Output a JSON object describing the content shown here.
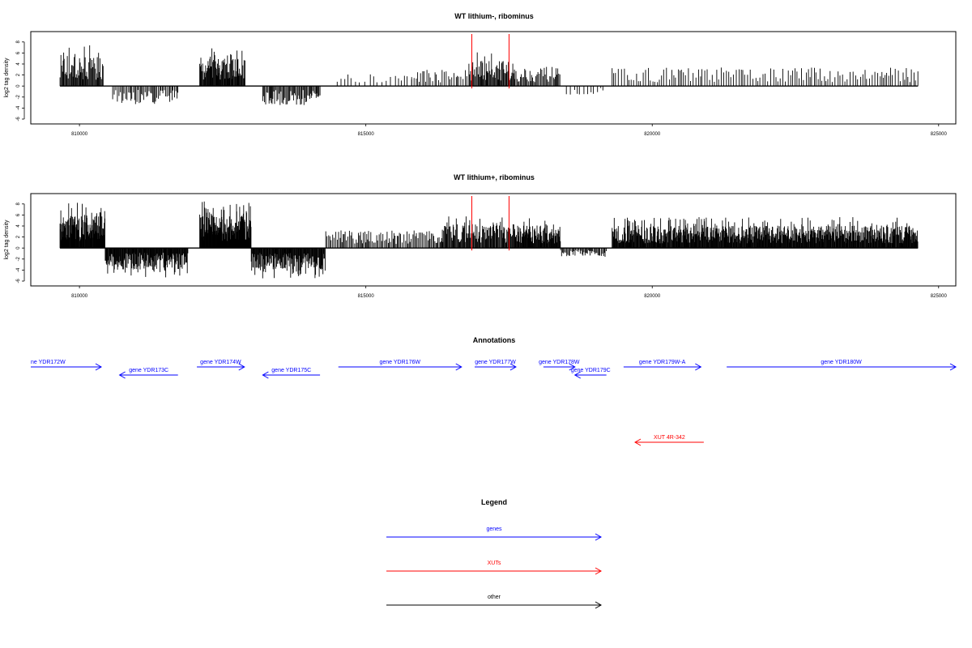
{
  "colors": {
    "gene": "#0000ff",
    "xut": "#ff0000",
    "other": "#000000",
    "marker": "#ff0000",
    "bars": "#000000"
  },
  "chart_data": [
    {
      "type": "bar",
      "title": "WT lithium-, ribominus",
      "ylabel": "log2 tag density",
      "xlim": [
        809150,
        825300
      ],
      "ylim": [
        -6,
        9
      ],
      "yticks": [
        -6,
        -4,
        -2,
        0,
        2,
        4,
        6,
        8
      ],
      "yticklabels": [
        "-6",
        "-4",
        "-2",
        "0",
        "2",
        "4",
        "6",
        "8"
      ],
      "xticks": [
        810000,
        815000,
        820000,
        825000
      ],
      "xticklabels": [
        "810000",
        "815000",
        "820000",
        "825000"
      ],
      "baseline_range": [
        809660,
        824640
      ],
      "marker_lines": [
        816850,
        817500
      ],
      "density_profile": [
        {
          "start": 809660,
          "end": 810420,
          "value": 4.6,
          "spacing": 12
        },
        {
          "start": 810580,
          "end": 811720,
          "value": -2.8,
          "spacing": 22
        },
        {
          "start": 812100,
          "end": 812900,
          "value": 4.2,
          "spacing": 10
        },
        {
          "start": 813200,
          "end": 814200,
          "value": -2.9,
          "spacing": 16
        },
        {
          "start": 814500,
          "end": 815800,
          "value": 1.8,
          "spacing": 75
        },
        {
          "start": 815800,
          "end": 816800,
          "value": 2.6,
          "spacing": 32
        },
        {
          "start": 816800,
          "end": 817600,
          "value": 3.8,
          "spacing": 14
        },
        {
          "start": 817600,
          "end": 818400,
          "value": 2.9,
          "spacing": 18
        },
        {
          "start": 818500,
          "end": 819200,
          "value": -1.3,
          "spacing": 60
        },
        {
          "start": 819300,
          "end": 824640,
          "value": 2.8,
          "spacing": 40
        }
      ]
    },
    {
      "type": "bar",
      "title": "WT lithium+, ribominus",
      "ylabel": "log2 tag density",
      "xlim": [
        809150,
        825300
      ],
      "ylim": [
        -6,
        9
      ],
      "yticks": [
        -6,
        -4,
        -2,
        0,
        2,
        4,
        6,
        8
      ],
      "yticklabels": [
        "-6",
        "-4",
        "-2",
        "0",
        "2",
        "4",
        "6",
        "8"
      ],
      "xticks": [
        810000,
        815000,
        820000,
        825000
      ],
      "xticklabels": [
        "810000",
        "815000",
        "820000",
        "825000"
      ],
      "baseline_range": [
        809660,
        824640
      ],
      "marker_lines": [
        816850,
        817500
      ],
      "density_profile": [
        {
          "start": 809660,
          "end": 810450,
          "value": 5.0,
          "spacing": 7
        },
        {
          "start": 810450,
          "end": 811900,
          "value": -3.3,
          "spacing": 9
        },
        {
          "start": 812100,
          "end": 813000,
          "value": 5.2,
          "spacing": 6
        },
        {
          "start": 813000,
          "end": 814300,
          "value": -3.4,
          "spacing": 9
        },
        {
          "start": 814300,
          "end": 816300,
          "value": 2.7,
          "spacing": 22
        },
        {
          "start": 816300,
          "end": 817600,
          "value": 3.6,
          "spacing": 12
        },
        {
          "start": 817600,
          "end": 818400,
          "value": 3.4,
          "spacing": 9
        },
        {
          "start": 818400,
          "end": 819200,
          "value": -1.4,
          "spacing": 18
        },
        {
          "start": 819300,
          "end": 824640,
          "value": 3.4,
          "spacing": 9
        }
      ]
    }
  ],
  "annotations": {
    "title": "Annotations",
    "features": [
      {
        "label": "ne YDR172W",
        "start": 809150,
        "end": 810380,
        "strand": "+",
        "kind": "gene",
        "row": 0
      },
      {
        "label": "gene YDR173C",
        "start": 810700,
        "end": 811720,
        "strand": "-",
        "kind": "gene",
        "row": 1
      },
      {
        "label": "gene YDR174W",
        "start": 812050,
        "end": 812880,
        "strand": "+",
        "kind": "gene",
        "row": 0
      },
      {
        "label": "gene YDR175C",
        "start": 813200,
        "end": 814200,
        "strand": "-",
        "kind": "gene",
        "row": 1
      },
      {
        "label": "gene YDR176W",
        "start": 814520,
        "end": 816670,
        "strand": "+",
        "kind": "gene",
        "row": 0
      },
      {
        "label": "gene YDR177W",
        "start": 816900,
        "end": 817620,
        "strand": "+",
        "kind": "gene",
        "row": 0
      },
      {
        "label": "gene YDR178W",
        "start": 818100,
        "end": 818650,
        "strand": "+",
        "kind": "gene",
        "row": 0
      },
      {
        "label": "gene YDR179C",
        "start": 818650,
        "end": 819200,
        "strand": "-",
        "kind": "gene",
        "row": 1
      },
      {
        "label": "gene YDR179W-A",
        "start": 819500,
        "end": 820850,
        "strand": "+",
        "kind": "gene",
        "row": 0
      },
      {
        "label": "gene YDR180W",
        "start": 821300,
        "end": 825300,
        "strand": "+",
        "kind": "gene",
        "row": 0
      },
      {
        "label": "XUT 4R-342",
        "start": 819700,
        "end": 820900,
        "strand": "-",
        "kind": "xut",
        "row": 2
      }
    ]
  },
  "legend": {
    "title": "Legend",
    "items": [
      {
        "label": "genes",
        "kind": "gene"
      },
      {
        "label": "XUTs",
        "kind": "xut"
      },
      {
        "label": "other",
        "kind": "other"
      }
    ]
  }
}
